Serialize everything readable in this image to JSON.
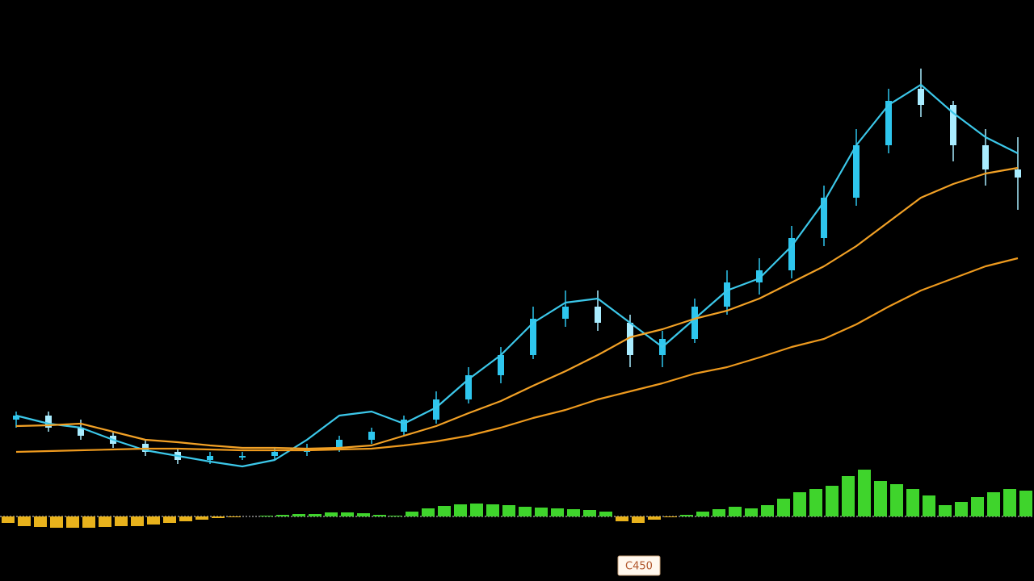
{
  "chart_data": [
    {
      "type": "candlestick",
      "categories": [
        null,
        null,
        null,
        null,
        null,
        null,
        null,
        null,
        null,
        null,
        null,
        null,
        null,
        null,
        null,
        null,
        null,
        null,
        null,
        null,
        null,
        null,
        null,
        null,
        null,
        null,
        null,
        null,
        null,
        null,
        null,
        null
      ],
      "open": [
        20,
        21,
        18,
        16,
        14,
        12,
        10,
        11,
        11,
        12,
        13,
        15,
        17,
        20,
        25,
        31,
        36,
        45,
        48,
        44,
        36,
        40,
        48,
        54,
        57,
        65,
        75,
        88,
        102,
        98,
        88,
        82
      ],
      "high": [
        22,
        22,
        20,
        17,
        15,
        13,
        12,
        12,
        13,
        14,
        16,
        18,
        21,
        27,
        33,
        38,
        48,
        52,
        52,
        46,
        42,
        50,
        57,
        60,
        68,
        78,
        92,
        102,
        107,
        99,
        92,
        90
      ],
      "low": [
        18,
        17,
        15,
        13,
        11,
        9,
        9,
        10,
        10,
        11,
        12,
        14,
        16,
        19,
        24,
        29,
        35,
        43,
        42,
        33,
        33,
        39,
        46,
        51,
        55,
        63,
        73,
        86,
        95,
        84,
        78,
        72
      ],
      "close": [
        21,
        18,
        16,
        14,
        12,
        10,
        11,
        11,
        12,
        13,
        15,
        17,
        20,
        25,
        31,
        36,
        45,
        48,
        44,
        36,
        40,
        48,
        54,
        57,
        65,
        75,
        88,
        99,
        98,
        88,
        82,
        80
      ],
      "up_color": "#2ec6ee",
      "down_color": "#a9ecff",
      "series": [
        {
          "color": "#3cc8ea",
          "values": [
            21,
            19,
            18,
            15,
            12.4,
            11,
            9.6,
            8.4,
            10,
            15,
            21,
            22,
            19,
            23,
            30,
            36,
            44,
            49,
            50,
            44,
            38,
            45,
            52,
            55,
            63,
            74,
            88,
            98,
            103,
            96,
            90,
            86
          ]
        },
        {
          "color": "#f2a126",
          "values": [
            18.4,
            18.6,
            19,
            17,
            15,
            14.4,
            13.6,
            13,
            13,
            12.8,
            13,
            13.6,
            16,
            18.4,
            21.6,
            24.6,
            28.4,
            32,
            36,
            40.4,
            42.4,
            45,
            47,
            50,
            54,
            58,
            63,
            69,
            75,
            78.4,
            81,
            82.4
          ]
        },
        {
          "color": "#ee9a1e",
          "values": [
            12,
            12.2,
            12.4,
            12.6,
            12.8,
            12.8,
            12.6,
            12.4,
            12.4,
            12.4,
            12.6,
            12.8,
            13.6,
            14.6,
            16,
            18,
            20.4,
            22.4,
            25,
            27,
            29,
            31.4,
            33,
            35.4,
            38,
            40,
            43.6,
            48,
            52,
            55,
            58,
            60
          ]
        }
      ],
      "ylim": [
        0,
        110
      ]
    },
    {
      "type": "bar",
      "categories": [
        null,
        null,
        null,
        null,
        null,
        null,
        null,
        null,
        null,
        null,
        null,
        null,
        null,
        null,
        null,
        null,
        null,
        null,
        null,
        null,
        null,
        null,
        null,
        null,
        null,
        null,
        null,
        null,
        null,
        null,
        null,
        null,
        null,
        null,
        null,
        null,
        null,
        null,
        null,
        null,
        null,
        null,
        null,
        null,
        null,
        null,
        null,
        null,
        null,
        null,
        null,
        null,
        null,
        null,
        null,
        null,
        null,
        null,
        null,
        null,
        null,
        null,
        null,
        null
      ],
      "values": [
        -8,
        -12,
        -13,
        -14,
        -14,
        -14,
        -13,
        -12,
        -12,
        -10,
        -8,
        -6,
        -4,
        -2,
        -1,
        0,
        1,
        2,
        3,
        3,
        5,
        5,
        4,
        2,
        1,
        6,
        10,
        13,
        15,
        16,
        15,
        14,
        12,
        11,
        10,
        9,
        8,
        6,
        -6,
        -8,
        -4,
        -1,
        2,
        6,
        9,
        12,
        10,
        14,
        22,
        30,
        34,
        38,
        50,
        58,
        44,
        40,
        34,
        26,
        14,
        18,
        24,
        30,
        34,
        32
      ],
      "positive_color": "#3fd42c",
      "negative_color": "#e8b21c",
      "ylim": [
        -20,
        60
      ],
      "annotation": "C450"
    }
  ]
}
